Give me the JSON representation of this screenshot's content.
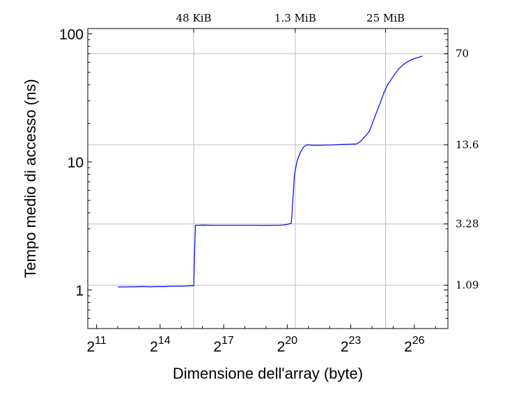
{
  "chart_data": {
    "type": "line",
    "xlabel": "Dimensione dell'array (byte)",
    "ylabel": "Tempo medio di accesso (ns)",
    "x_scale": "log2",
    "y_scale": "log10",
    "xlim": [
      1536,
      201326592
    ],
    "ylim": [
      0.5,
      110
    ],
    "x_ticks": [
      {
        "exp": 11,
        "base": "2",
        "sup": "11"
      },
      {
        "exp": 14,
        "base": "2",
        "sup": "14"
      },
      {
        "exp": 17,
        "base": "2",
        "sup": "17"
      },
      {
        "exp": 20,
        "base": "2",
        "sup": "20"
      },
      {
        "exp": 23,
        "base": "2",
        "sup": "23"
      },
      {
        "exp": 26,
        "base": "2",
        "sup": "26"
      }
    ],
    "y_ticks": [
      {
        "value": 1,
        "label": "1"
      },
      {
        "value": 10,
        "label": "10"
      },
      {
        "value": 100,
        "label": "100"
      }
    ],
    "top_ticks": [
      {
        "bytes": 49152,
        "label": "48 KiB"
      },
      {
        "bytes": 1363149,
        "label": "1.3 MiB"
      },
      {
        "bytes": 26214400,
        "label": "25 MiB"
      }
    ],
    "right_ticks": [
      {
        "value": 70,
        "label": "70"
      },
      {
        "value": 13.6,
        "label": "13.6"
      },
      {
        "value": 3.28,
        "label": "3.28"
      },
      {
        "value": 1.09,
        "label": 1.09
      }
    ],
    "grid": true,
    "series": [
      {
        "color": "#0000ff",
        "points": [
          [
            4096,
            1.06
          ],
          [
            4467,
            1.055
          ],
          [
            4871,
            1.06
          ],
          [
            5311,
            1.055
          ],
          [
            5793,
            1.06
          ],
          [
            6889,
            1.06
          ],
          [
            8192,
            1.065
          ],
          [
            9742,
            1.065
          ],
          [
            11585,
            1.06
          ],
          [
            13777,
            1.065
          ],
          [
            16384,
            1.065
          ],
          [
            19484,
            1.065
          ],
          [
            23170,
            1.07
          ],
          [
            27554,
            1.07
          ],
          [
            32768,
            1.07
          ],
          [
            38968,
            1.075
          ],
          [
            46341,
            1.08
          ],
          [
            49152,
            1.08
          ],
          [
            52000,
            3.2
          ],
          [
            65536,
            3.21
          ],
          [
            98304,
            3.2
          ],
          [
            131072,
            3.2
          ],
          [
            196608,
            3.2
          ],
          [
            262144,
            3.2
          ],
          [
            393216,
            3.2
          ],
          [
            524288,
            3.19
          ],
          [
            655360,
            3.2
          ],
          [
            786432,
            3.2
          ],
          [
            917504,
            3.22
          ],
          [
            1048576,
            3.25
          ],
          [
            1200000,
            3.32
          ],
          [
            1260000,
            5.0
          ],
          [
            1330000,
            8.0
          ],
          [
            1450000,
            10.2
          ],
          [
            1600000,
            11.8
          ],
          [
            1800000,
            13.1
          ],
          [
            2000000,
            13.6
          ],
          [
            2500000,
            13.5
          ],
          [
            3000000,
            13.5
          ],
          [
            4000000,
            13.55
          ],
          [
            5000000,
            13.6
          ],
          [
            6000000,
            13.7
          ],
          [
            8000000,
            13.75
          ],
          [
            10000000,
            13.8
          ],
          [
            11000000,
            14.2
          ],
          [
            12000000,
            14.8
          ],
          [
            13000000,
            15.6
          ],
          [
            14000000,
            16.2
          ],
          [
            15500000,
            17.5
          ],
          [
            17000000,
            20.0
          ],
          [
            19000000,
            23.5
          ],
          [
            21000000,
            27.0
          ],
          [
            23000000,
            31.0
          ],
          [
            25000000,
            35.0
          ],
          [
            28000000,
            40.0
          ],
          [
            31000000,
            43.5
          ],
          [
            35000000,
            48.0
          ],
          [
            40000000,
            53.0
          ],
          [
            46000000,
            57.0
          ],
          [
            52000000,
            60.0
          ],
          [
            60000000,
            62.5
          ],
          [
            70000000,
            64.5
          ],
          [
            80000000,
            66.0
          ],
          [
            88000000,
            67.0
          ]
        ]
      }
    ]
  }
}
